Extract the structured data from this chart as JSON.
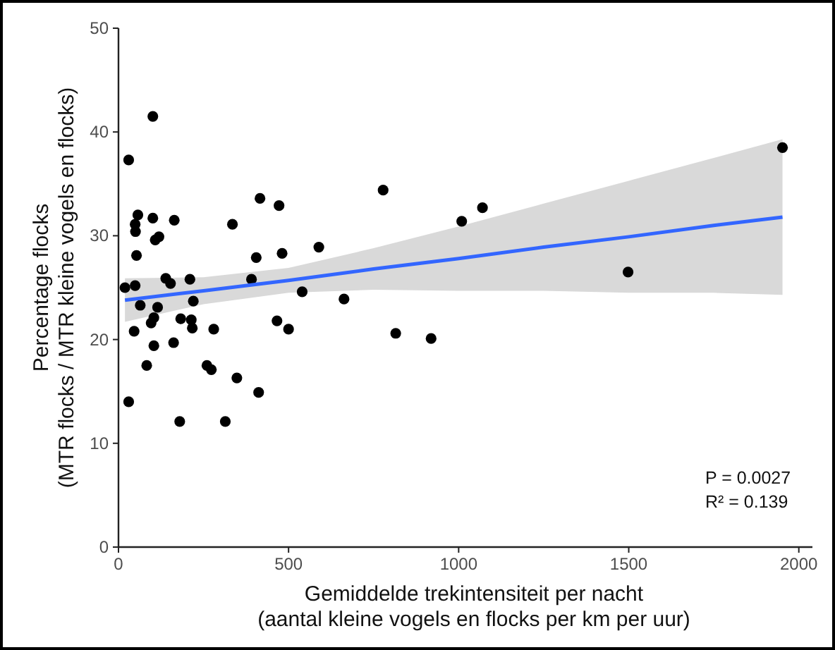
{
  "chart_data": {
    "type": "scatter",
    "xlabel": "Gemiddelde trekintensiteit per nacht\n(aantal kleine vogels en flocks per km per uur)",
    "ylabel": "Percentage flocks\n(MTR flocks / MTR kleine vogels en flocks)",
    "xlim": [
      0,
      2040
    ],
    "ylim": [
      0,
      50
    ],
    "xticks": [
      0,
      500,
      1000,
      1500,
      2000
    ],
    "yticks": [
      0,
      10,
      20,
      30,
      40,
      50
    ],
    "grid": false,
    "marker": "circle",
    "series": [
      {
        "color": "#000000",
        "x": [
          30,
          101,
          57,
          49,
          50,
          101,
          164,
          108,
          119,
          53,
          335,
          416,
          472,
          405,
          481,
          589,
          778,
          1009,
          1070,
          1498,
          1952,
          815,
          919,
          19,
          49,
          64,
          115,
          139,
          153,
          210,
          220,
          391,
          540,
          663,
          46,
          96,
          104,
          104,
          83,
          162,
          183,
          214,
          217,
          280,
          260,
          273,
          30,
          180,
          314,
          348,
          412,
          466,
          500
        ],
        "values": [
          37.3,
          41.5,
          32.0,
          31.1,
          30.4,
          31.7,
          31.5,
          29.6,
          29.9,
          28.1,
          31.1,
          33.6,
          32.9,
          27.9,
          28.3,
          28.9,
          34.4,
          31.4,
          32.7,
          26.5,
          38.5,
          20.6,
          20.1,
          25.0,
          25.2,
          23.3,
          23.1,
          25.9,
          25.4,
          25.8,
          23.7,
          25.8,
          24.6,
          23.9,
          20.8,
          21.6,
          22.1,
          19.4,
          17.5,
          19.7,
          22.0,
          21.9,
          21.1,
          21.0,
          17.5,
          17.1,
          14.0,
          12.1,
          12.1,
          16.3,
          14.9,
          21.8,
          21.0
        ]
      },
      {
        "type": "line",
        "marker": "none",
        "color": "#3366ff",
        "x": [
          19,
          250,
          500,
          750,
          1000,
          1250,
          1500,
          1750,
          1952
        ],
        "values": [
          23.8,
          24.7,
          25.7,
          26.8,
          27.8,
          28.9,
          29.9,
          31.0,
          31.8
        ],
        "lower": [
          21.7,
          23.4,
          24.5,
          24.8,
          24.7,
          24.7,
          24.5,
          24.5,
          24.3
        ],
        "upper": [
          25.9,
          26.0,
          26.9,
          28.8,
          30.9,
          33.1,
          35.3,
          37.5,
          39.3
        ]
      }
    ],
    "annotations": [
      "P = 0.0027",
      "R² = 0.139"
    ]
  }
}
